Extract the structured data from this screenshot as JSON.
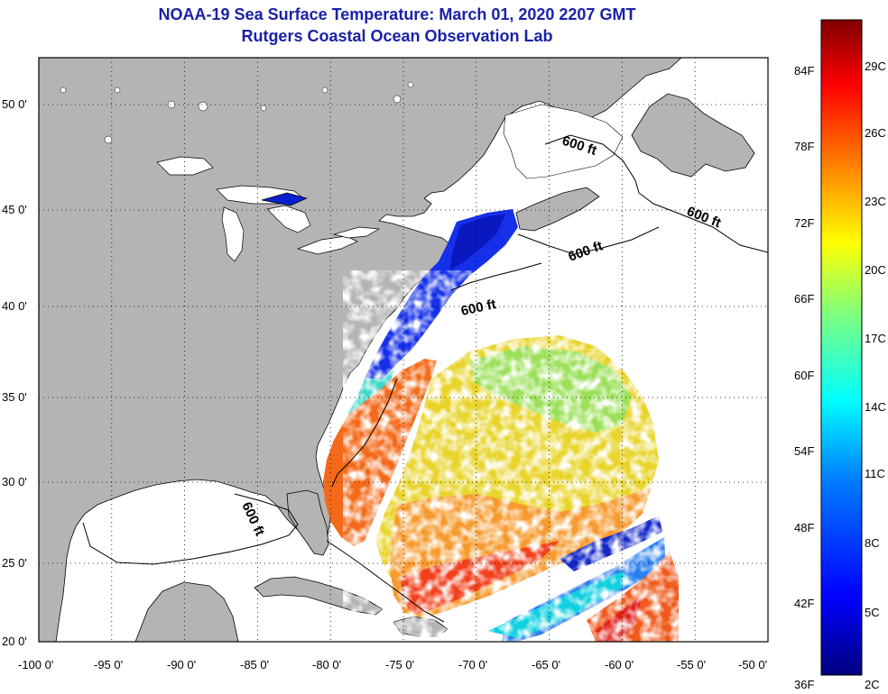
{
  "title": {
    "line1": "NOAA-19 Sea Surface Temperature:  March 01, 2020 2207 GMT",
    "line2": "Rutgers Coastal Ocean Observation Lab"
  },
  "axes": {
    "x_ticks": [
      "-100 0'",
      "-95 0'",
      "-90 0'",
      "-85 0'",
      "-80 0'",
      "-75 0'",
      "-70 0'",
      "-65 0'",
      "-60 0'",
      "-55 0'",
      "-50 0'"
    ],
    "y_ticks": [
      "50 0'",
      "45 0'",
      "40 0'",
      "35 0'",
      "30 0'",
      "25 0'",
      "20 0'"
    ],
    "lon_range": [
      -100,
      -50
    ],
    "lat_range": [
      20,
      52
    ]
  },
  "contour_labels": [
    "600 ft",
    "600 ft",
    "600 ft",
    "600 ft",
    "600 ft"
  ],
  "colorbar": {
    "fahrenheit": [
      "84F",
      "78F",
      "72F",
      "66F",
      "60F",
      "54F",
      "48F",
      "42F",
      "36F"
    ],
    "celsius": [
      "29C",
      "26C",
      "23C",
      "20C",
      "17C",
      "14C",
      "11C",
      "8C",
      "5C",
      "2C"
    ],
    "colors": [
      "#00007f",
      "#0000ff",
      "#007fff",
      "#00ffff",
      "#7fff7f",
      "#ffff00",
      "#ff7f00",
      "#ff0000",
      "#7f0000"
    ]
  },
  "colors": {
    "land": "#b4b4b4",
    "ocean_nodata": "#ffffff",
    "title": "#1a22a6"
  }
}
